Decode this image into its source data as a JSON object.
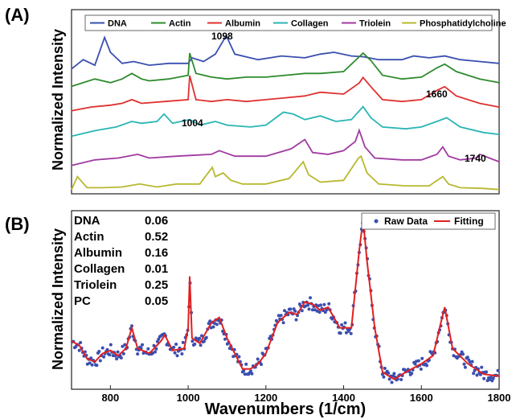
{
  "figure": {
    "panel_a_label": "(A)",
    "panel_b_label": "(B)",
    "ylabel": "Normalized Intensity",
    "xlabel": "Wavenumbers (1/cm)"
  },
  "colors": {
    "DNA": "#3a4fb0",
    "Actin": "#2e8b2e",
    "Albumin": "#e03030",
    "Collagen": "#2ab5b5",
    "Triolein": "#a03aa0",
    "Phosphatidylcholine": "#b8b830",
    "raw": "#3a4fb0",
    "fit": "#e02020"
  },
  "chart_data": [
    {
      "panel": "A",
      "type": "line",
      "ylabel": "Normalized Intensity",
      "xlim": [
        700,
        1800
      ],
      "grid": false,
      "legend_position": "top",
      "series": [
        {
          "name": "DNA",
          "x": [
            700,
            730,
            760,
            785,
            800,
            830,
            860,
            900,
            950,
            1000,
            1010,
            1040,
            1070,
            1098,
            1120,
            1180,
            1240,
            1300,
            1340,
            1375,
            1420,
            1450,
            1490,
            1550,
            1580,
            1620,
            1660,
            1700,
            1750,
            1800
          ],
          "y": [
            0.05,
            0.3,
            0.15,
            0.9,
            0.5,
            0.2,
            0.25,
            0.15,
            0.2,
            0.2,
            0.35,
            0.25,
            0.45,
            0.95,
            0.45,
            0.3,
            0.4,
            0.35,
            0.45,
            0.5,
            0.4,
            0.38,
            0.3,
            0.3,
            0.4,
            0.35,
            0.4,
            0.3,
            0.25,
            0.2
          ]
        },
        {
          "name": "Actin",
          "x": [
            700,
            760,
            800,
            830,
            855,
            880,
            900,
            950,
            1000,
            1004,
            1020,
            1060,
            1100,
            1150,
            1200,
            1250,
            1300,
            1340,
            1400,
            1440,
            1450,
            1470,
            1500,
            1550,
            1600,
            1640,
            1660,
            1690,
            1750,
            1800
          ],
          "y": [
            0.1,
            0.3,
            0.2,
            0.3,
            0.45,
            0.3,
            0.25,
            0.3,
            0.4,
            1.0,
            0.45,
            0.35,
            0.3,
            0.35,
            0.35,
            0.4,
            0.45,
            0.45,
            0.5,
            0.9,
            1.0,
            0.8,
            0.4,
            0.3,
            0.35,
            0.6,
            0.7,
            0.5,
            0.3,
            0.2
          ]
        },
        {
          "name": "Albumin",
          "x": [
            700,
            750,
            800,
            830,
            855,
            880,
            940,
            1000,
            1004,
            1020,
            1060,
            1100,
            1150,
            1200,
            1250,
            1300,
            1340,
            1400,
            1440,
            1450,
            1470,
            1500,
            1550,
            1600,
            1640,
            1660,
            1690,
            1750,
            1800
          ],
          "y": [
            0.05,
            0.15,
            0.2,
            0.25,
            0.35,
            0.25,
            0.3,
            0.35,
            1.0,
            0.35,
            0.3,
            0.35,
            0.3,
            0.35,
            0.4,
            0.45,
            0.55,
            0.5,
            0.8,
            0.95,
            0.7,
            0.35,
            0.3,
            0.35,
            0.6,
            0.7,
            0.45,
            0.25,
            0.15
          ]
        },
        {
          "name": "Collagen",
          "x": [
            700,
            760,
            815,
            855,
            880,
            920,
            938,
            960,
            1004,
            1030,
            1070,
            1100,
            1160,
            1200,
            1245,
            1270,
            1300,
            1340,
            1380,
            1420,
            1450,
            1470,
            1500,
            1560,
            1600,
            1640,
            1665,
            1700,
            1760,
            1800
          ],
          "y": [
            0.1,
            0.25,
            0.35,
            0.5,
            0.45,
            0.5,
            0.7,
            0.45,
            0.55,
            0.4,
            0.5,
            0.4,
            0.35,
            0.4,
            0.75,
            0.7,
            0.55,
            0.65,
            0.5,
            0.55,
            0.9,
            0.6,
            0.35,
            0.3,
            0.35,
            0.5,
            0.6,
            0.35,
            0.2,
            0.15
          ]
        },
        {
          "name": "Triolein",
          "x": [
            700,
            760,
            820,
            870,
            900,
            970,
            1060,
            1080,
            1120,
            1200,
            1265,
            1300,
            1320,
            1360,
            1400,
            1430,
            1440,
            1455,
            1480,
            1550,
            1600,
            1640,
            1655,
            1670,
            1700,
            1740,
            1750,
            1800
          ],
          "y": [
            0.05,
            0.2,
            0.25,
            0.35,
            0.25,
            0.3,
            0.35,
            0.45,
            0.3,
            0.3,
            0.5,
            0.75,
            0.4,
            0.35,
            0.45,
            0.7,
            1.0,
            0.55,
            0.25,
            0.2,
            0.2,
            0.35,
            0.55,
            0.3,
            0.2,
            0.25,
            0.35,
            0.15
          ]
        },
        {
          "name": "Phosphatidylcholine",
          "x": [
            700,
            715,
            740,
            780,
            830,
            875,
            920,
            970,
            1030,
            1062,
            1070,
            1090,
            1110,
            1140,
            1200,
            1260,
            1296,
            1310,
            1340,
            1400,
            1438,
            1445,
            1460,
            1490,
            1560,
            1620,
            1655,
            1670,
            1700,
            1760,
            1800
          ],
          "y": [
            0.05,
            0.4,
            0.1,
            0.1,
            0.12,
            0.2,
            0.12,
            0.2,
            0.2,
            0.65,
            0.4,
            0.5,
            0.3,
            0.2,
            0.2,
            0.35,
            0.8,
            0.45,
            0.25,
            0.3,
            0.9,
            0.95,
            0.5,
            0.2,
            0.15,
            0.15,
            0.4,
            0.2,
            0.1,
            0.08,
            0.05
          ]
        }
      ],
      "annotations": [
        "1098",
        "1660",
        "1004",
        "1740"
      ]
    },
    {
      "panel": "B",
      "type": "line",
      "xlabel": "Wavenumbers (1/cm)",
      "ylabel": "Normalized Intensity",
      "xlim": [
        700,
        1800
      ],
      "xticks": [
        800,
        1000,
        1200,
        1400,
        1600,
        1800
      ],
      "grid": false,
      "legend_position": "top-right",
      "series": [
        {
          "name": "Fitting",
          "x": [
            700,
            720,
            740,
            760,
            780,
            800,
            820,
            840,
            855,
            870,
            900,
            930,
            940,
            960,
            990,
            1000,
            1004,
            1010,
            1030,
            1060,
            1080,
            1100,
            1120,
            1140,
            1160,
            1180,
            1200,
            1230,
            1260,
            1280,
            1300,
            1320,
            1340,
            1360,
            1390,
            1420,
            1440,
            1450,
            1460,
            1480,
            1500,
            1530,
            1560,
            1600,
            1630,
            1650,
            1660,
            1680,
            1720,
            1760,
            1800
          ],
          "y": [
            0.42,
            0.38,
            0.25,
            0.22,
            0.3,
            0.33,
            0.28,
            0.35,
            0.55,
            0.35,
            0.3,
            0.42,
            0.48,
            0.33,
            0.35,
            0.55,
            1.05,
            0.45,
            0.4,
            0.6,
            0.65,
            0.45,
            0.3,
            0.15,
            0.15,
            0.2,
            0.3,
            0.6,
            0.7,
            0.68,
            0.8,
            0.78,
            0.72,
            0.75,
            0.55,
            0.55,
            1.3,
            1.6,
            1.2,
            0.55,
            0.12,
            0.05,
            0.12,
            0.2,
            0.28,
            0.6,
            0.75,
            0.35,
            0.2,
            0.1,
            0.08
          ]
        }
      ],
      "raw_data_label": "Raw Data",
      "fit_label": "Fitting",
      "weights": [
        {
          "name": "DNA",
          "value": "0.06"
        },
        {
          "name": "Actin",
          "value": "0.52"
        },
        {
          "name": "Albumin",
          "value": "0.16"
        },
        {
          "name": "Collagen",
          "value": "0.01"
        },
        {
          "name": "Triolein",
          "value": "0.25"
        },
        {
          "name": "PC",
          "value": "0.05"
        }
      ]
    }
  ]
}
